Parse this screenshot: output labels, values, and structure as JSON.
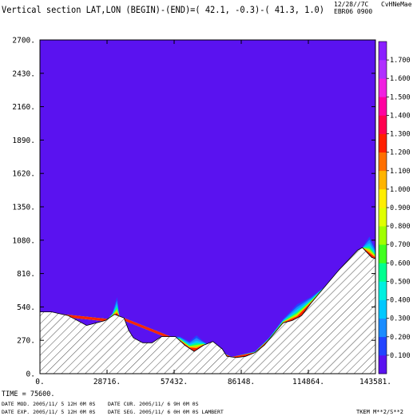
{
  "header": {
    "title": "Vertical section LAT,LON (BEGIN)-(END)=( 42.1, -0.3)-( 41.3,  1.0)",
    "date_code": "12/28//7C",
    "user_code": "CvHNeMae",
    "run_code": "EBR06 0900"
  },
  "footer": {
    "time": "TIME =   75600.",
    "line1_left": "DATE MOD. 2005/11/ 5  12H 0M 0S",
    "line1_right": "DATE CUR. 2005/11/ 6   9H 0M 0S",
    "line2_left": "DATE EXP. 2005/11/ 5  12H 0M 0S",
    "line2_right": "DATE SEG. 2005/11/ 6   0H 0M 0S  LAMBERT",
    "variable": "TKEM M**2/S**2"
  },
  "chart_data": {
    "type": "area",
    "title": "Vertical section LAT,LON (BEGIN)-(END)=( 42.1, -0.3)-( 41.3,  1.0)",
    "xlim": [
      0,
      143581
    ],
    "ylim": [
      0,
      2700
    ],
    "xticks": [
      0,
      28716,
      57432,
      86148,
      114864,
      143581
    ],
    "xtick_labels": [
      "0.",
      "28716.",
      "57432.",
      "86148.",
      "114864.",
      "143581."
    ],
    "yticks": [
      0,
      270,
      540,
      810,
      1080,
      1350,
      1620,
      1890,
      2160,
      2430,
      2700
    ],
    "ytick_labels": [
      "0.",
      "270.",
      "540.",
      "810.",
      "1080.",
      "1350.",
      "1620.",
      "1890.",
      "2160.",
      "2430.",
      "2700."
    ],
    "background_level_color": "#5a12f0",
    "terrain": {
      "x": [
        0,
        5000,
        12000,
        20000,
        28000,
        32000,
        36000,
        38000,
        40000,
        44000,
        48000,
        52000,
        54000,
        58000,
        62000,
        66000,
        70000,
        74000,
        78000,
        80000,
        84000,
        88000,
        92000,
        96000,
        100000,
        104000,
        108000,
        112000,
        116000,
        120000,
        124000,
        128000,
        132000,
        136000,
        138000,
        140000,
        142000,
        143581
      ],
      "y": [
        500,
        500,
        470,
        390,
        430,
        480,
        450,
        350,
        290,
        250,
        250,
        300,
        300,
        300,
        230,
        180,
        230,
        260,
        200,
        140,
        130,
        140,
        170,
        230,
        320,
        410,
        430,
        470,
        570,
        660,
        750,
        840,
        920,
        1000,
        1020,
        980,
        940,
        930
      ]
    },
    "tke_region": {
      "x": [
        0,
        29000,
        31000,
        33000,
        34000,
        36000,
        56000,
        60000,
        64000,
        67000,
        70000,
        82000,
        92000,
        98000,
        104000,
        110000,
        116000,
        122000,
        128000,
        134000,
        138000,
        141000,
        143581
      ],
      "top": [
        500,
        430,
        490,
        620,
        460,
        450,
        300,
        300,
        260,
        310,
        260,
        130,
        180,
        290,
        440,
        560,
        620,
        670,
        720,
        800,
        900,
        1110,
        1010
      ]
    },
    "colorbar": {
      "title": "",
      "ticks": [
        0.1,
        0.2,
        0.3,
        0.4,
        0.5,
        0.6,
        0.7,
        0.8,
        0.9,
        1.0,
        1.1,
        1.2,
        1.3,
        1.4,
        1.5,
        1.6,
        1.7
      ],
      "tick_labels": [
        "0.100",
        "0.200",
        "0.300",
        "0.400",
        "0.500",
        "0.600",
        "0.700",
        "0.800",
        "0.900",
        "1.000",
        "1.100",
        "1.200",
        "1.300",
        "1.400",
        "1.500",
        "1.600",
        "1.700"
      ],
      "colors": [
        "#5a12f0",
        "#2244ff",
        "#1a8cff",
        "#00c8ff",
        "#00f0e0",
        "#00ff90",
        "#40ff20",
        "#a0ff00",
        "#e0ff00",
        "#ffee00",
        "#ffb400",
        "#ff7000",
        "#ff2000",
        "#ff0050",
        "#ff00a0",
        "#f020e0",
        "#b030ff",
        "#8a20ff"
      ]
    }
  }
}
